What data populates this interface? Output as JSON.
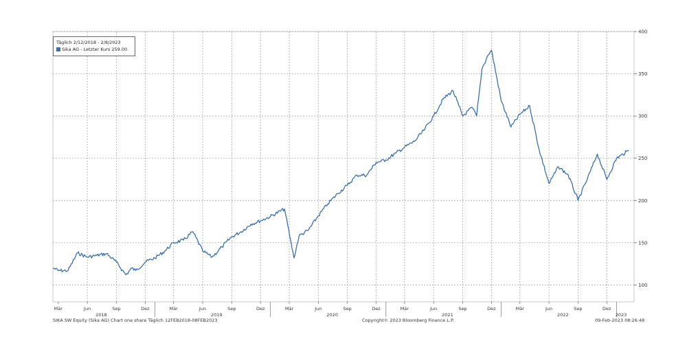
{
  "legend": {
    "date_range": "Täglich 2/12/2018 - 2/8/2023",
    "series_label": "Sika AG - Letzter Kurs 259.00"
  },
  "footer": {
    "left": "SIKA SW Equity (Sika AG) Chart one share  Täglich 12FEB2018-08FEB2023",
    "center": "Copyright© 2023 Bloomberg Finance L.P.",
    "right": "09-Feb-2023 08:26:48"
  },
  "chart_data": {
    "type": "line",
    "title": "",
    "xlabel": "",
    "ylabel": "",
    "ylim": [
      80,
      400
    ],
    "yticks": [
      100,
      150,
      200,
      250,
      300,
      350,
      400
    ],
    "month_ticks": [
      "Mär",
      "Jun",
      "Sep",
      "Dez",
      "Mär",
      "Jun",
      "Sep",
      "Dez",
      "Mär",
      "Jun",
      "Sep",
      "Dez",
      "Mär",
      "Jun",
      "Sep",
      "Dez",
      "Mär",
      "Jun",
      "Sep",
      "Dez"
    ],
    "year_ticks": [
      "2018",
      "2019",
      "2020",
      "2021",
      "2022",
      "2023"
    ],
    "grid": true,
    "color": "#3a6fa8",
    "series": [
      {
        "name": "Sika AG - Letzter Kurs",
        "x": [
          "2018-02-12",
          "2018-03-01",
          "2018-04-01",
          "2018-05-01",
          "2018-06-01",
          "2018-07-01",
          "2018-08-01",
          "2018-09-01",
          "2018-10-01",
          "2018-10-20",
          "2018-11-01",
          "2018-12-01",
          "2019-01-01",
          "2019-02-01",
          "2019-03-01",
          "2019-04-01",
          "2019-05-01",
          "2019-06-01",
          "2019-07-01",
          "2019-08-01",
          "2019-09-01",
          "2019-10-01",
          "2019-11-01",
          "2019-12-01",
          "2020-01-01",
          "2020-02-15",
          "2020-03-16",
          "2020-04-01",
          "2020-05-01",
          "2020-06-01",
          "2020-07-01",
          "2020-08-01",
          "2020-09-01",
          "2020-10-01",
          "2020-11-01",
          "2020-12-01",
          "2021-01-01",
          "2021-02-01",
          "2021-03-01",
          "2021-04-01",
          "2021-05-01",
          "2021-06-01",
          "2021-07-01",
          "2021-08-01",
          "2021-09-01",
          "2021-10-01",
          "2021-10-15",
          "2021-11-01",
          "2021-11-20",
          "2021-12-01",
          "2022-01-01",
          "2022-02-01",
          "2022-03-01",
          "2022-04-01",
          "2022-05-01",
          "2022-06-01",
          "2022-07-01",
          "2022-08-01",
          "2022-09-01",
          "2022-10-01",
          "2022-11-01",
          "2022-12-01",
          "2023-01-01",
          "2023-02-08"
        ],
        "values": [
          120,
          117,
          117,
          138,
          133,
          135,
          137,
          127,
          112,
          120,
          117,
          127,
          132,
          140,
          150,
          153,
          163,
          140,
          133,
          145,
          157,
          163,
          172,
          176,
          181,
          190,
          132,
          158,
          165,
          182,
          196,
          208,
          218,
          230,
          230,
          245,
          248,
          256,
          263,
          270,
          283,
          300,
          320,
          330,
          300,
          310,
          300,
          356,
          372,
          378,
          318,
          287,
          302,
          312,
          260,
          220,
          240,
          230,
          200,
          226,
          255,
          225,
          250,
          259
        ]
      }
    ]
  }
}
